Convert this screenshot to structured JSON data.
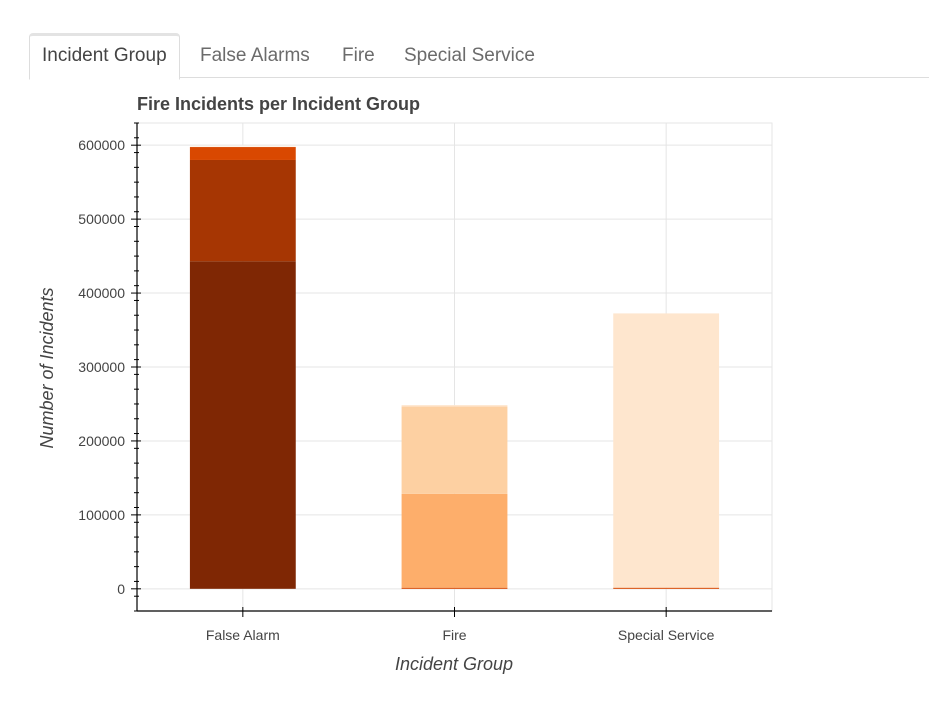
{
  "tabs": [
    {
      "label": "Incident Group",
      "active": true
    },
    {
      "label": "False Alarms",
      "active": false
    },
    {
      "label": "Fire",
      "active": false
    },
    {
      "label": "Special Service",
      "active": false
    }
  ],
  "chart_data": {
    "type": "bar",
    "stacked": true,
    "title": "Fire Incidents per Incident Group",
    "xlabel": "Incident Group",
    "ylabel": "Number of Incidents",
    "categories": [
      "False Alarm",
      "Fire",
      "Special Service"
    ],
    "ylim": [
      -30000,
      630000
    ],
    "yticks": [
      0,
      100000,
      200000,
      300000,
      400000,
      500000,
      600000
    ],
    "grid": true,
    "legend": "none",
    "series": [
      {
        "color": "#7f2704",
        "values": [
          443000,
          0,
          0
        ]
      },
      {
        "color": "#a63603",
        "values": [
          137000,
          0,
          0
        ]
      },
      {
        "color": "#d94801",
        "values": [
          17500,
          1500,
          1500
        ]
      },
      {
        "color": "#f16913",
        "values": [
          0,
          0,
          0
        ]
      },
      {
        "color": "#fd8d3c",
        "values": [
          0,
          0,
          0
        ]
      },
      {
        "color": "#fdae6b",
        "values": [
          0,
          127000,
          0
        ]
      },
      {
        "color": "#fdd0a2",
        "values": [
          0,
          118000,
          0
        ]
      },
      {
        "color": "#fee6ce",
        "values": [
          0,
          2000,
          371000
        ]
      },
      {
        "color": "#fff5eb",
        "values": [
          2000,
          0,
          0
        ]
      }
    ]
  }
}
